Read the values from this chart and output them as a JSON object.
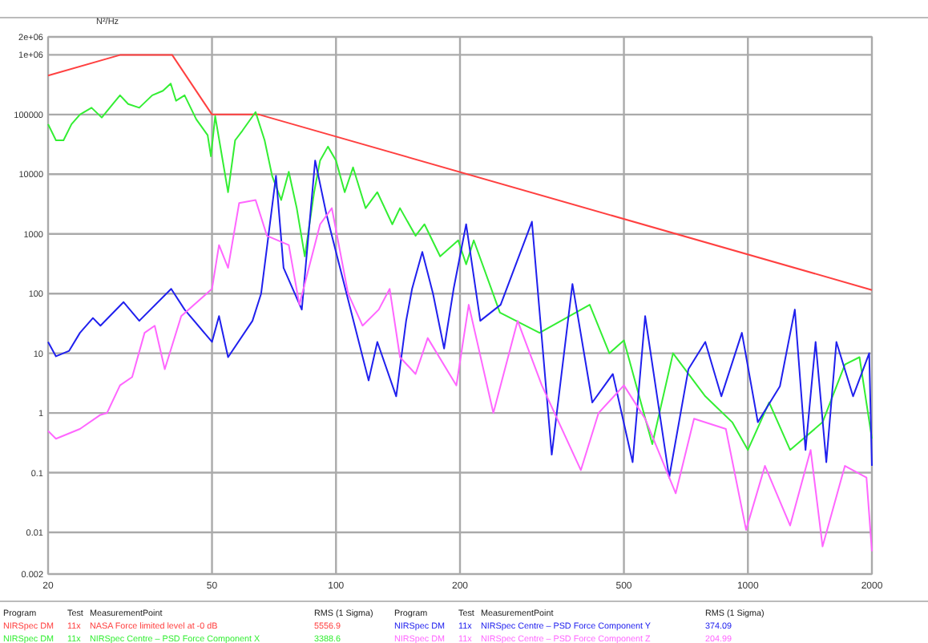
{
  "chart_data": {
    "type": "line",
    "ylabel": "N²/Hz",
    "log": "xy",
    "grid": true,
    "legend": "bottom",
    "line_style": "solid",
    "marker": "none",
    "xlim": [
      20,
      2000
    ],
    "xticks": [
      20,
      50,
      100,
      200,
      500,
      1000,
      2000
    ],
    "ylim": [
      0.002,
      2000000
    ],
    "yticks": [
      0.002,
      0.01,
      0.1,
      1,
      10,
      100,
      1000,
      10000,
      100000,
      {
        "value": 1000000,
        "label": "1e+06"
      },
      {
        "value": 2000000,
        "label": "2e+06"
      }
    ],
    "annotations": [
      "Program",
      "Test",
      "MeasurementPoint",
      "RMS (1 Sigma)",
      "Program",
      "Test",
      "MeasurementPoint",
      "RMS (1 Sigma)",
      "NIRSpec DM",
      "11x",
      "5556.9",
      "NIRSpec DM",
      "11x",
      "3388.6",
      "NIRSpec DM",
      "11x",
      "374.09",
      "NIRSpec DM",
      "11x",
      "204.99"
    ],
    "series": [
      {
        "name": "NASA Force limited level at -0 dB",
        "color": "#ff4040",
        "x": [
          20,
          30,
          40,
          50,
          65,
          2000
        ],
        "values": [
          450000,
          1000000,
          1000000,
          100000,
          100000,
          115
        ]
      },
      {
        "name": "NIRSpec Centre – PSD Force Component X",
        "color": "#33ee33",
        "x": [
          20,
          20.9,
          21.8,
          22.8,
          23.9,
          25.5,
          27,
          28.6,
          29.9,
          31.3,
          33.3,
          35.8,
          38,
          39.7,
          40.9,
          42.9,
          45.8,
          48.8,
          49.7,
          50.9,
          54.7,
          56.9,
          59.3,
          63.8,
          67.1,
          70,
          73.6,
          76.8,
          80.3,
          84,
          88.5,
          91.5,
          95.6,
          100,
          105,
          110,
          118,
          126,
          137,
          143,
          156,
          164,
          179,
          198,
          207,
          216,
          250,
          312,
          413,
          461,
          500,
          586,
          658,
          788,
          916,
          1000,
          1126,
          1266,
          1518,
          1720,
          1866,
          2000
        ],
        "values": [
          69000,
          37000,
          37000,
          69000,
          100000,
          130000,
          89000,
          145000,
          210000,
          150000,
          130000,
          210000,
          250000,
          330000,
          170000,
          210000,
          83000,
          45000,
          20000,
          94000,
          5000,
          37000,
          54000,
          110000,
          37000,
          9300,
          3700,
          11000,
          2700,
          420,
          5000,
          17000,
          29000,
          17000,
          5000,
          13000,
          2700,
          5000,
          1450,
          2700,
          930,
          1450,
          420,
          780,
          310,
          780,
          48,
          22,
          65,
          10,
          16.5,
          0.3,
          10,
          1.9,
          0.7,
          0.24,
          1.5,
          0.24,
          0.7,
          6.5,
          8.6,
          0.37
        ]
      },
      {
        "name": "NIRSpec Centre – PSD Force Component Y",
        "color": "#2020ee",
        "x": [
          20,
          20.9,
          22.5,
          23.9,
          25.7,
          26.8,
          30.5,
          33.3,
          39.8,
          42.9,
          50,
          52,
          54.7,
          62.7,
          65.8,
          71.5,
          74.6,
          82.6,
          89,
          94.7,
          100,
          120,
          126,
          140,
          148,
          153,
          162,
          172,
          183,
          193,
          207,
          224,
          251,
          299,
          334,
          375,
          419,
          470,
          525,
          563,
          644,
          717,
          788,
          862,
          967,
          1057,
          1196,
          1300,
          1380,
          1460,
          1550,
          1640,
          1800,
          1970,
          2000
        ],
        "values": [
          15.5,
          8.9,
          11,
          22,
          39,
          29,
          72,
          35,
          120,
          54,
          15.5,
          42,
          8.6,
          35,
          100,
          9400,
          270,
          54,
          17000,
          2200,
          500,
          3.5,
          15.5,
          1.9,
          35,
          120,
          500,
          100,
          12,
          120,
          1450,
          35,
          65,
          1600,
          0.2,
          145,
          1.5,
          4.5,
          0.15,
          42,
          0.083,
          5.4,
          15.5,
          1.9,
          22,
          0.7,
          2.8,
          54,
          0.24,
          15.5,
          0.15,
          15.5,
          1.9,
          10,
          0.13
        ]
      },
      {
        "name": "NIRSpec Centre – PSD Force Component Z",
        "color": "#ff66ff",
        "x": [
          20,
          20.9,
          23.9,
          26.8,
          27.8,
          29.9,
          32,
          34.3,
          36.3,
          38.4,
          42.1,
          50,
          52,
          54.7,
          58.2,
          63.8,
          68,
          76.8,
          81.5,
          91.5,
          97.7,
          107,
          116,
          127,
          135,
          143,
          156,
          167,
          196,
          210,
          241,
          276,
          316,
          393,
          434,
          500,
          563,
          668,
          740,
          884,
          990,
          1100,
          1266,
          1420,
          1518,
          1720,
          1940,
          2000
        ],
        "values": [
          0.5,
          0.37,
          0.54,
          0.93,
          1,
          2.9,
          4,
          22,
          29,
          5.4,
          42,
          120,
          650,
          270,
          3300,
          3700,
          930,
          650,
          65,
          1450,
          2700,
          100,
          29,
          54,
          120,
          8.6,
          4.5,
          18,
          2.9,
          65,
          1,
          35,
          2.9,
          0.11,
          1,
          2.9,
          0.8,
          0.045,
          0.8,
          0.54,
          0.011,
          0.13,
          0.013,
          0.24,
          0.0058,
          0.13,
          0.083,
          0.0048
        ]
      }
    ]
  }
}
